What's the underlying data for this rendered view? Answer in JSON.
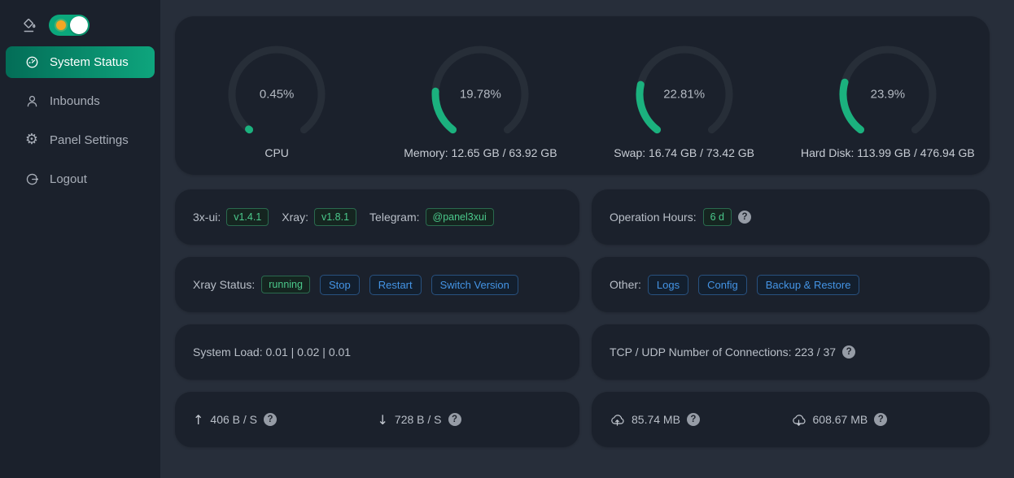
{
  "sidebar": {
    "items": [
      {
        "label": "System Status",
        "icon": "dashboard-icon",
        "active": true
      },
      {
        "label": "Inbounds",
        "icon": "user-icon",
        "active": false
      },
      {
        "label": "Panel Settings",
        "icon": "gear-icon",
        "active": false
      },
      {
        "label": "Logout",
        "icon": "logout-icon",
        "active": false
      }
    ],
    "theme_toggle_on": true
  },
  "gauges": [
    {
      "percent": 0.45,
      "percent_label": "0.45%",
      "label": "CPU"
    },
    {
      "percent": 19.78,
      "percent_label": "19.78%",
      "label": "Memory: 12.65 GB / 63.92 GB"
    },
    {
      "percent": 22.81,
      "percent_label": "22.81%",
      "label": "Swap: 16.74 GB / 73.42 GB"
    },
    {
      "percent": 23.9,
      "percent_label": "23.9%",
      "label": "Hard Disk: 113.99 GB / 476.94 GB"
    }
  ],
  "versions": {
    "xui_label": "3x-ui:",
    "xui_version": "v1.4.1",
    "xray_label": "Xray:",
    "xray_version": "v1.8.1",
    "telegram_label": "Telegram:",
    "telegram_handle": "@panel3xui"
  },
  "operation_hours": {
    "label": "Operation Hours:",
    "value": "6 d"
  },
  "xray_status": {
    "label": "Xray Status:",
    "status": "running",
    "stop_label": "Stop",
    "restart_label": "Restart",
    "switch_label": "Switch Version"
  },
  "other": {
    "label": "Other:",
    "logs_label": "Logs",
    "config_label": "Config",
    "backup_label": "Backup & Restore"
  },
  "system_load": {
    "text": "System Load: 0.01 | 0.02 | 0.01"
  },
  "connections": {
    "text": "TCP / UDP Number of Connections: 223 / 37"
  },
  "network_speed": {
    "up": "406 B / S",
    "down": "728 B / S"
  },
  "network_total": {
    "up": "85.74 MB",
    "down": "608.67 MB"
  },
  "glyphs": {
    "question": "?",
    "arrow_up": "↑",
    "arrow_down": "↓"
  },
  "colors": {
    "main_bg": "#272e3a",
    "panel_bg": "#1b212c",
    "primary_gradient_start": "#036d57",
    "primary_gradient_end": "#0ea57d",
    "toggle_green": "#0ba87c",
    "sun_orange": "#f5a623",
    "gauge_green": "#1bb17e",
    "gauge_track": "#272e38",
    "tag_green_text": "#4bc98b",
    "tag_green_border": "#2a6a4e",
    "tag_green_bg": "#152520",
    "tag_blue_text": "#4494e5",
    "tag_blue_border": "#28517f",
    "tag_blue_bg": "#131f2e"
  }
}
